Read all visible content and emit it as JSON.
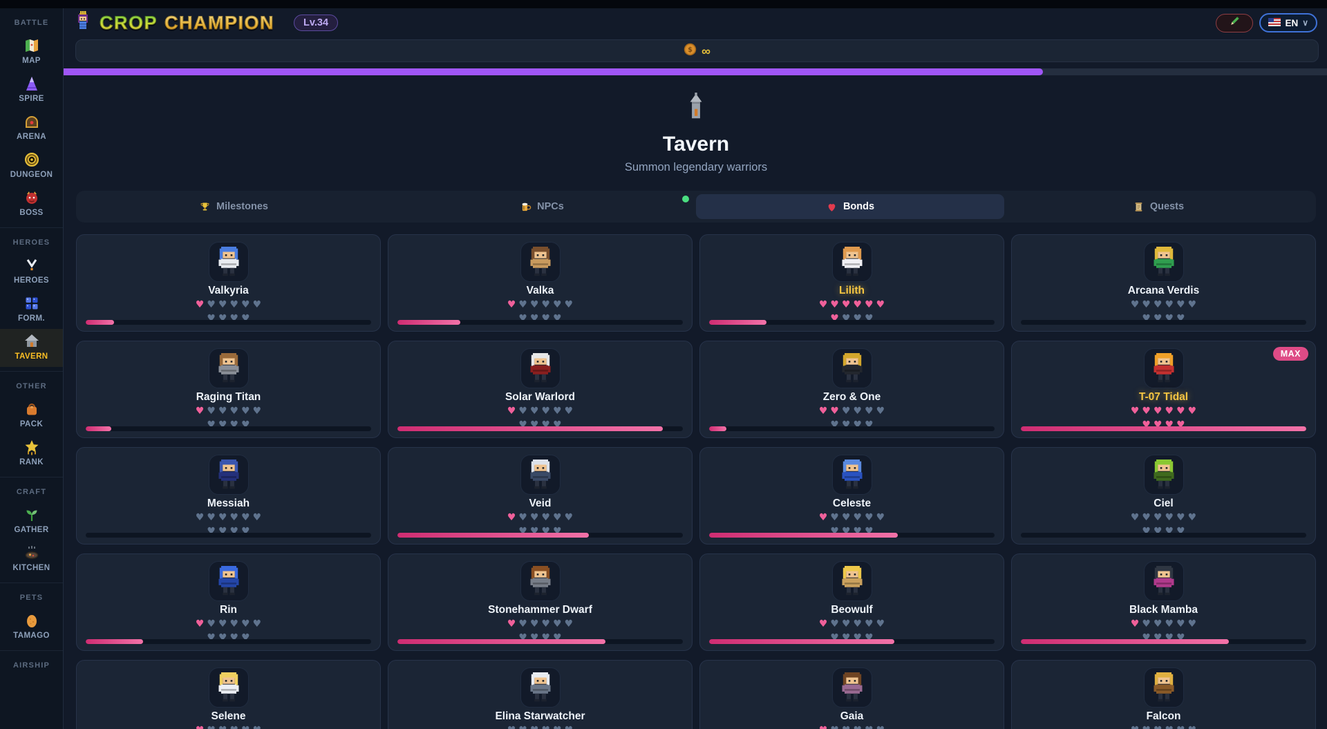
{
  "header": {
    "logo": {
      "word1": "CROP",
      "word2": "CHAMPION",
      "icon": "princess-pixel-icon"
    },
    "level_badge": "Lv.34",
    "edit_button_icon": "pencil-icon",
    "language": {
      "label": "EN",
      "flag_icon": "us-flag-icon",
      "chevron": "∨"
    },
    "currency": {
      "coin_icon": "gold-coin-icon",
      "amount": "∞"
    },
    "xp_bar": {
      "progress_pct": 77.5,
      "fill_color": "#a056f7"
    }
  },
  "sidebar": {
    "sections": [
      {
        "label": "BATTLE",
        "items": [
          {
            "label": "MAP",
            "icon": "map-icon",
            "active": false
          },
          {
            "label": "SPIRE",
            "icon": "spire-icon",
            "active": false
          },
          {
            "label": "ARENA",
            "icon": "arena-icon",
            "active": false
          },
          {
            "label": "DUNGEON",
            "icon": "dungeon-icon",
            "active": false
          },
          {
            "label": "BOSS",
            "icon": "boss-icon",
            "active": false
          }
        ]
      },
      {
        "label": "HEROES",
        "items": [
          {
            "label": "HEROES",
            "icon": "heroes-medal-icon",
            "active": false
          },
          {
            "label": "FORM.",
            "icon": "formation-grid-icon",
            "active": false
          },
          {
            "label": "TAVERN",
            "icon": "tavern-house-icon",
            "active": true
          }
        ]
      },
      {
        "label": "OTHER",
        "items": [
          {
            "label": "PACK",
            "icon": "pack-bag-icon",
            "active": false
          },
          {
            "label": "RANK",
            "icon": "rank-star-icon",
            "active": false
          }
        ]
      },
      {
        "label": "CRAFT",
        "items": [
          {
            "label": "GATHER",
            "icon": "gather-sprout-icon",
            "active": false
          },
          {
            "label": "KITCHEN",
            "icon": "kitchen-pan-icon",
            "active": false
          }
        ]
      },
      {
        "label": "PETS",
        "items": [
          {
            "label": "TAMAGO",
            "icon": "tamago-egg-icon",
            "active": false
          }
        ]
      },
      {
        "label": "AIRSHIP",
        "items": []
      }
    ]
  },
  "page": {
    "icon": "house-icon",
    "title": "Tavern",
    "subtitle": "Summon legendary warriors"
  },
  "tabs": [
    {
      "label": "Milestones",
      "icon": "trophy-icon",
      "active": false,
      "notification_dot": false
    },
    {
      "label": "NPCs",
      "icon": "beer-mug-icon",
      "active": false,
      "notification_dot": true
    },
    {
      "label": "Bonds",
      "icon": "heart-icon",
      "active": true,
      "notification_dot": false
    },
    {
      "label": "Quests",
      "icon": "scroll-icon",
      "active": false,
      "notification_dot": false
    }
  ],
  "bonds": {
    "hearts_total": 10,
    "heart_row_split": 6,
    "cards": [
      {
        "name": "Valkyria",
        "hearts": 1,
        "progress_pct": 10,
        "gold_name": false,
        "max": false,
        "palette": {
          "hair": "#4a7de0",
          "outfit": "#e8ebf0"
        }
      },
      {
        "name": "Valka",
        "hearts": 1,
        "progress_pct": 22,
        "gold_name": false,
        "max": false,
        "palette": {
          "hair": "#7a4f2d",
          "outfit": "#c89a5e"
        }
      },
      {
        "name": "Lilith",
        "hearts": 7,
        "progress_pct": 20,
        "gold_name": true,
        "max": false,
        "palette": {
          "hair": "#e09a4e",
          "outfit": "#f0f0f5"
        }
      },
      {
        "name": "Arcana Verdis",
        "hearts": 0,
        "progress_pct": 0,
        "gold_name": false,
        "max": false,
        "palette": {
          "hair": "#e0b83a",
          "outfit": "#2f9e4f"
        }
      },
      {
        "name": "Raging Titan",
        "hearts": 1,
        "progress_pct": 9,
        "gold_name": false,
        "max": false,
        "palette": {
          "hair": "#9a6a3a",
          "outfit": "#8a8f98"
        }
      },
      {
        "name": "Solar Warlord",
        "hearts": 1,
        "progress_pct": 93,
        "gold_name": false,
        "max": false,
        "palette": {
          "hair": "#e8e8e8",
          "outfit": "#8a1f1f"
        }
      },
      {
        "name": "Zero & One",
        "hearts": 2,
        "progress_pct": 6,
        "gold_name": false,
        "max": false,
        "palette": {
          "hair": "#d4a72c",
          "outfit": "#23272e"
        }
      },
      {
        "name": "T-07 Tidal",
        "hearts": 10,
        "progress_pct": 100,
        "gold_name": true,
        "max": true,
        "palette": {
          "hair": "#f0a028",
          "outfit": "#c43030"
        }
      },
      {
        "name": "Messiah",
        "hearts": 0,
        "progress_pct": 0,
        "gold_name": false,
        "max": false,
        "palette": {
          "hair": "#3a56b0",
          "outfit": "#24307a"
        }
      },
      {
        "name": "Veid",
        "hearts": 1,
        "progress_pct": 67,
        "gold_name": false,
        "max": false,
        "palette": {
          "hair": "#dde2ea",
          "outfit": "#3a4a66"
        }
      },
      {
        "name": "Celeste",
        "hearts": 1,
        "progress_pct": 66,
        "gold_name": false,
        "max": false,
        "palette": {
          "hair": "#5a8ae0",
          "outfit": "#2a52c0"
        }
      },
      {
        "name": "Ciel",
        "hearts": 0,
        "progress_pct": 0,
        "gold_name": false,
        "max": false,
        "palette": {
          "hair": "#8ac832",
          "outfit": "#3f6a1e"
        }
      },
      {
        "name": "Rin",
        "hearts": 1,
        "progress_pct": 20,
        "gold_name": false,
        "max": false,
        "palette": {
          "hair": "#3a6ae0",
          "outfit": "#2446a8"
        }
      },
      {
        "name": "Stonehammer Dwarf",
        "hearts": 1,
        "progress_pct": 73,
        "gold_name": false,
        "max": false,
        "palette": {
          "hair": "#8a4f22",
          "outfit": "#777d88"
        }
      },
      {
        "name": "Beowulf",
        "hearts": 1,
        "progress_pct": 65,
        "gold_name": false,
        "max": false,
        "palette": {
          "hair": "#eec84a",
          "outfit": "#caa15e"
        }
      },
      {
        "name": "Black Mamba",
        "hearts": 1,
        "progress_pct": 73,
        "gold_name": false,
        "max": false,
        "palette": {
          "hair": "#2f3642",
          "outfit": "#b03a8c"
        }
      },
      {
        "name": "Selene",
        "hearts": 1,
        "progress_pct": 0,
        "gold_name": false,
        "max": false,
        "palette": {
          "hair": "#f0d060",
          "outfit": "#eceff4"
        }
      },
      {
        "name": "Elina Starwatcher",
        "hearts": 0,
        "progress_pct": 0,
        "gold_name": false,
        "max": false,
        "palette": {
          "hair": "#e8ecf2",
          "outfit": "#6a7688"
        }
      },
      {
        "name": "Gaia",
        "hearts": 1,
        "progress_pct": 0,
        "gold_name": false,
        "max": false,
        "palette": {
          "hair": "#6f4423",
          "outfit": "#9a6a92"
        }
      },
      {
        "name": "Falcon",
        "hearts": 0,
        "progress_pct": 0,
        "gold_name": false,
        "max": false,
        "palette": {
          "hair": "#e0b040",
          "outfit": "#8a5a28"
        }
      }
    ]
  },
  "colors": {
    "heart_filled": "#f0609a",
    "heart_empty": "#5f738e",
    "progress_fill": "#e1417f",
    "xp_fill": "#a056f7",
    "gold_name": "#f5c542",
    "max_badge_bg": "#de4b86",
    "notification_dot": "#4ade80"
  }
}
